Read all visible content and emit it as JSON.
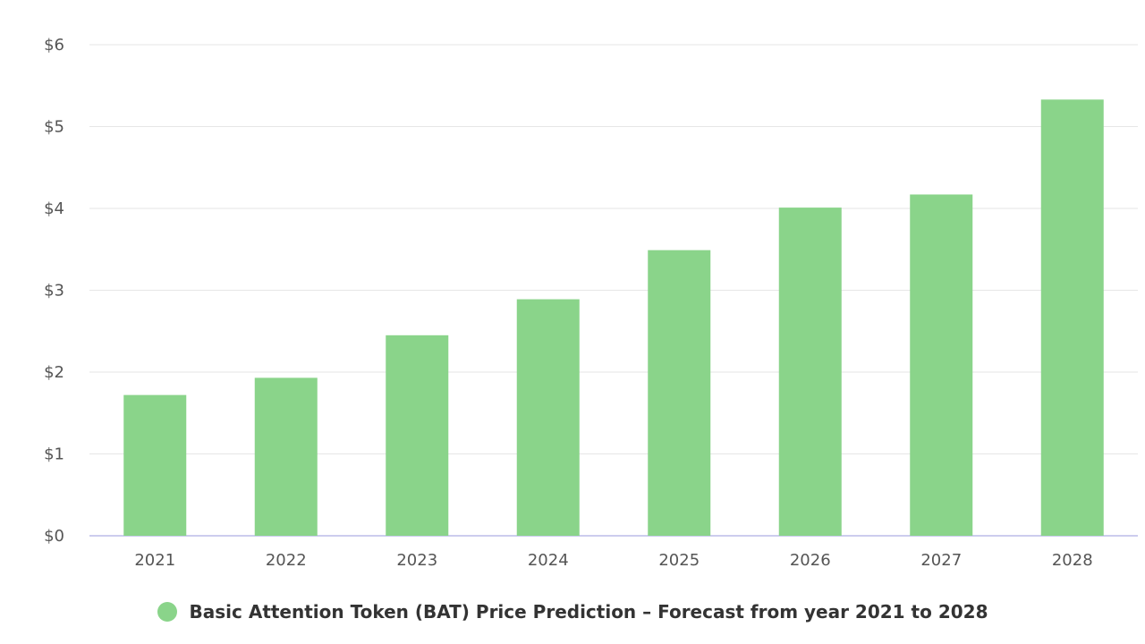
{
  "chart_data": {
    "type": "bar",
    "categories": [
      "2021",
      "2022",
      "2023",
      "2024",
      "2025",
      "2026",
      "2027",
      "2028"
    ],
    "series": [
      {
        "name": "Basic Attention Token (BAT) Price Prediction – Forecast from year 2021 to 2028",
        "values": [
          1.72,
          1.93,
          2.45,
          2.89,
          3.49,
          4.01,
          4.17,
          5.33
        ],
        "color": "#8ad48a"
      }
    ],
    "y_ticks": [
      "$0",
      "$1",
      "$2",
      "$3",
      "$4",
      "$5",
      "$6"
    ],
    "ylim": [
      0,
      6
    ],
    "grid": true,
    "legend_position": "bottom-center",
    "colors": {
      "bar": "#8ad48a",
      "grid": "#e6e6e6",
      "baseline": "#ccccee",
      "text": "#555555"
    }
  }
}
